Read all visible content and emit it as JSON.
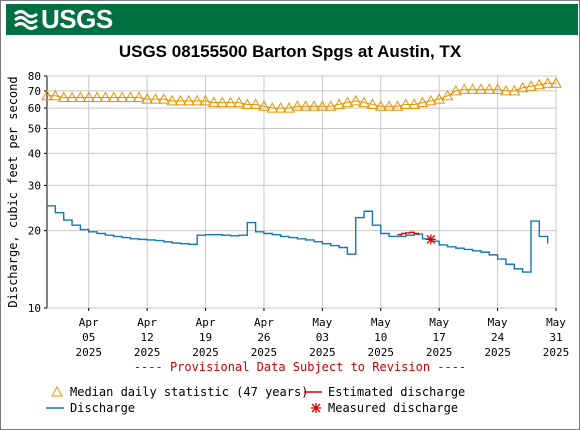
{
  "header": {
    "logo_text": "USGS",
    "brand_color": "#006f41",
    "title": "USGS 08155500 Barton Spgs at Austin, TX"
  },
  "chart_data": {
    "type": "line",
    "title": "USGS 08155500 Barton Spgs at Austin, TX",
    "ylabel": "Discharge, cubic feet per second",
    "xlabel": "",
    "y_scale": "log",
    "ylim": [
      10,
      80
    ],
    "xlim": [
      "2025-03-31",
      "2025-05-31"
    ],
    "y_ticks": [
      10,
      20,
      30,
      40,
      50,
      60,
      70,
      80
    ],
    "x_ticks": [
      {
        "date": "2025-04-05",
        "month": "Apr",
        "day": "05",
        "year": "2025"
      },
      {
        "date": "2025-04-12",
        "month": "Apr",
        "day": "12",
        "year": "2025"
      },
      {
        "date": "2025-04-19",
        "month": "Apr",
        "day": "19",
        "year": "2025"
      },
      {
        "date": "2025-04-26",
        "month": "Apr",
        "day": "26",
        "year": "2025"
      },
      {
        "date": "2025-05-03",
        "month": "May",
        "day": "03",
        "year": "2025"
      },
      {
        "date": "2025-05-10",
        "month": "May",
        "day": "10",
        "year": "2025"
      },
      {
        "date": "2025-05-17",
        "month": "May",
        "day": "17",
        "year": "2025"
      },
      {
        "date": "2025-05-24",
        "month": "May",
        "day": "24",
        "year": "2025"
      },
      {
        "date": "2025-05-31",
        "month": "May",
        "day": "31",
        "year": "2025"
      }
    ],
    "grid": true,
    "annotation": "---- Provisional Data Subject to Revision ----",
    "series": [
      {
        "name": "Median daily statistic (47 years)",
        "color": "#e69500",
        "marker": "triangle",
        "x": [
          "2025-03-31",
          "2025-04-01",
          "2025-04-02",
          "2025-04-03",
          "2025-04-04",
          "2025-04-05",
          "2025-04-06",
          "2025-04-07",
          "2025-04-08",
          "2025-04-09",
          "2025-04-10",
          "2025-04-11",
          "2025-04-12",
          "2025-04-13",
          "2025-04-14",
          "2025-04-15",
          "2025-04-16",
          "2025-04-17",
          "2025-04-18",
          "2025-04-19",
          "2025-04-20",
          "2025-04-21",
          "2025-04-22",
          "2025-04-23",
          "2025-04-24",
          "2025-04-25",
          "2025-04-26",
          "2025-04-27",
          "2025-04-28",
          "2025-04-29",
          "2025-04-30",
          "2025-05-01",
          "2025-05-02",
          "2025-05-03",
          "2025-05-04",
          "2025-05-05",
          "2025-05-06",
          "2025-05-07",
          "2025-05-08",
          "2025-05-09",
          "2025-05-10",
          "2025-05-11",
          "2025-05-12",
          "2025-05-13",
          "2025-05-14",
          "2025-05-15",
          "2025-05-16",
          "2025-05-17",
          "2025-05-18",
          "2025-05-19",
          "2025-05-20",
          "2025-05-21",
          "2025-05-22",
          "2025-05-23",
          "2025-05-24",
          "2025-05-25",
          "2025-05-26",
          "2025-05-27",
          "2025-05-28",
          "2025-05-29",
          "2025-05-30",
          "2025-05-31"
        ],
        "values": [
          67,
          67,
          66,
          66,
          66,
          66,
          66,
          66,
          66,
          66,
          66,
          66,
          65,
          65,
          65,
          64,
          64,
          64,
          64,
          64,
          63,
          63,
          63,
          63,
          62,
          62,
          61,
          60,
          60,
          60,
          61,
          61,
          61,
          61,
          61,
          62,
          63,
          64,
          63,
          62,
          61,
          61,
          61,
          62,
          62,
          63,
          64,
          65,
          67,
          70,
          71,
          71,
          71,
          71,
          71,
          70,
          70,
          72,
          73,
          74,
          75,
          75
        ]
      },
      {
        "name": "Discharge",
        "color": "#1478b4",
        "marker": "none",
        "x": [
          "2025-03-31",
          "2025-04-01",
          "2025-04-02",
          "2025-04-03",
          "2025-04-04",
          "2025-04-05",
          "2025-04-06",
          "2025-04-07",
          "2025-04-08",
          "2025-04-09",
          "2025-04-10",
          "2025-04-11",
          "2025-04-12",
          "2025-04-13",
          "2025-04-14",
          "2025-04-15",
          "2025-04-16",
          "2025-04-17",
          "2025-04-18",
          "2025-04-19",
          "2025-04-20",
          "2025-04-21",
          "2025-04-22",
          "2025-04-23",
          "2025-04-24",
          "2025-04-25",
          "2025-04-26",
          "2025-04-27",
          "2025-04-28",
          "2025-04-29",
          "2025-04-30",
          "2025-05-01",
          "2025-05-02",
          "2025-05-03",
          "2025-05-04",
          "2025-05-05",
          "2025-05-06",
          "2025-05-07",
          "2025-05-08",
          "2025-05-09",
          "2025-05-10",
          "2025-05-11",
          "2025-05-12",
          "2025-05-13",
          "2025-05-14",
          "2025-05-15",
          "2025-05-16",
          "2025-05-17",
          "2025-05-18",
          "2025-05-19",
          "2025-05-20",
          "2025-05-21",
          "2025-05-22",
          "2025-05-23",
          "2025-05-24",
          "2025-05-25",
          "2025-05-26",
          "2025-05-27",
          "2025-05-28",
          "2025-05-29",
          "2025-05-30"
        ],
        "values": [
          25,
          23.5,
          22,
          21,
          20.2,
          19.8,
          19.5,
          19.2,
          19.0,
          18.8,
          18.6,
          18.5,
          18.4,
          18.3,
          18.1,
          17.9,
          17.8,
          17.7,
          19.2,
          19.3,
          19.3,
          19.2,
          19.1,
          19.2,
          21.5,
          19.8,
          19.5,
          19.3,
          19.0,
          18.8,
          18.6,
          18.4,
          18.1,
          17.8,
          17.5,
          17.2,
          16.2,
          22.5,
          23.8,
          21.0,
          19.5,
          19.0,
          19.0,
          19.2,
          19.4,
          18.6,
          18.2,
          17.6,
          17.3,
          17.1,
          16.9,
          16.7,
          16.5,
          16.1,
          15.5,
          14.8,
          14.2,
          13.8,
          21.8,
          19.0,
          17.8
        ]
      },
      {
        "name": "Estimated discharge",
        "color": "#e00000",
        "marker": "none",
        "x": [
          "2025-05-12",
          "2025-05-12.5",
          "2025-05-13",
          "2025-05-13.5",
          "2025-05-14",
          "2025-05-14.5"
        ],
        "values": [
          19.3,
          19.5,
          19.6,
          19.7,
          19.5,
          19.2
        ]
      },
      {
        "name": "Measured discharge",
        "color": "#e00000",
        "marker": "asterisk",
        "x": [
          "2025-05-16"
        ],
        "values": [
          18.5
        ]
      }
    ],
    "legend": {
      "position": "bottom",
      "entries": [
        {
          "label": "Median daily statistic (47 years)",
          "symbol": "triangle",
          "color": "#e69500"
        },
        {
          "label": "Estimated discharge",
          "symbol": "line",
          "color": "#e00000"
        },
        {
          "label": "Discharge",
          "symbol": "line",
          "color": "#1478b4"
        },
        {
          "label": "Measured discharge",
          "symbol": "asterisk",
          "color": "#e00000"
        }
      ]
    }
  }
}
